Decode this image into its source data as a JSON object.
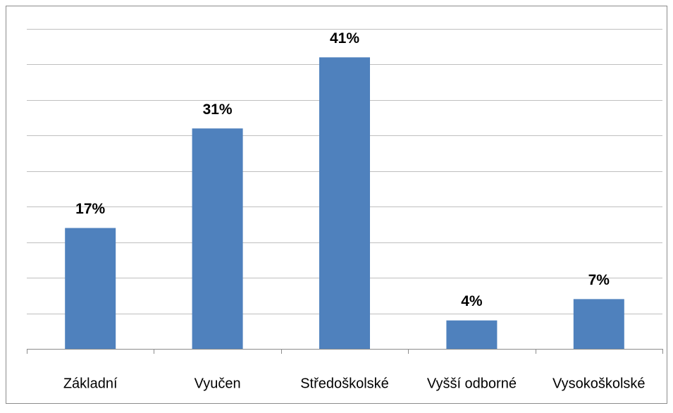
{
  "chart_data": {
    "type": "bar",
    "categories": [
      "Základní",
      "Vyučen",
      "Středoškolské",
      "Vyšší odborné",
      "Vysokoškolské"
    ],
    "values": [
      17,
      31,
      41,
      4,
      7
    ],
    "value_labels": [
      "17%",
      "31%",
      "41%",
      "4%",
      "7%"
    ],
    "color": "#4f81bd",
    "ylim": [
      0,
      45
    ],
    "yticks": [
      0,
      5,
      10,
      15,
      20,
      25,
      30,
      35,
      40,
      45
    ],
    "grid": true
  }
}
